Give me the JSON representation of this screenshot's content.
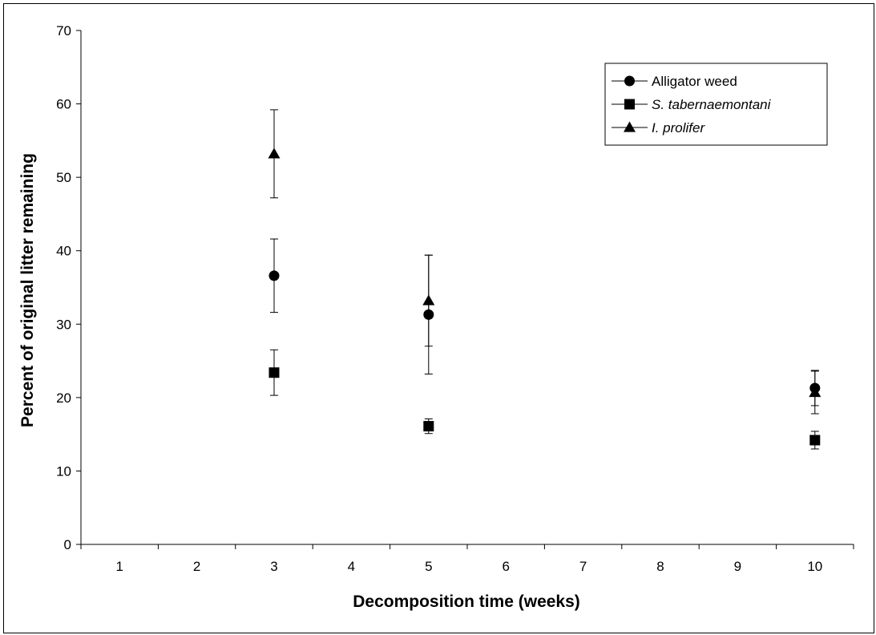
{
  "chart_data": {
    "type": "scatter",
    "xlabel": "Decomposition time (weeks)",
    "ylabel": "Percent of original litter remaining",
    "categories": [
      "1",
      "2",
      "3",
      "4",
      "5",
      "6",
      "7",
      "8",
      "9",
      "10"
    ],
    "ylim": [
      0,
      70
    ],
    "yticks": [
      0,
      10,
      20,
      30,
      40,
      50,
      60,
      70
    ],
    "grid": false,
    "legend_position": "top-right",
    "series": [
      {
        "name": "Alligator weed",
        "italic": false,
        "marker": "circle",
        "points": [
          {
            "x": "3",
            "y": 36.6,
            "err": 5.0
          },
          {
            "x": "5",
            "y": 31.3,
            "err": 8.1
          },
          {
            "x": "10",
            "y": 21.3,
            "err": 2.4
          }
        ]
      },
      {
        "name": "S. tabernaemontani",
        "italic": true,
        "marker": "square",
        "points": [
          {
            "x": "3",
            "y": 23.4,
            "err": 3.1
          },
          {
            "x": "5",
            "y": 16.1,
            "err": 1.0
          },
          {
            "x": "10",
            "y": 14.2,
            "err": 1.2
          }
        ]
      },
      {
        "name": "I. prolifer",
        "italic": true,
        "marker": "triangle",
        "points": [
          {
            "x": "3",
            "y": 53.2,
            "err": 6.0
          },
          {
            "x": "5",
            "y": 33.2,
            "err": 6.2
          },
          {
            "x": "10",
            "y": 20.7,
            "err": 2.9
          }
        ]
      }
    ]
  }
}
